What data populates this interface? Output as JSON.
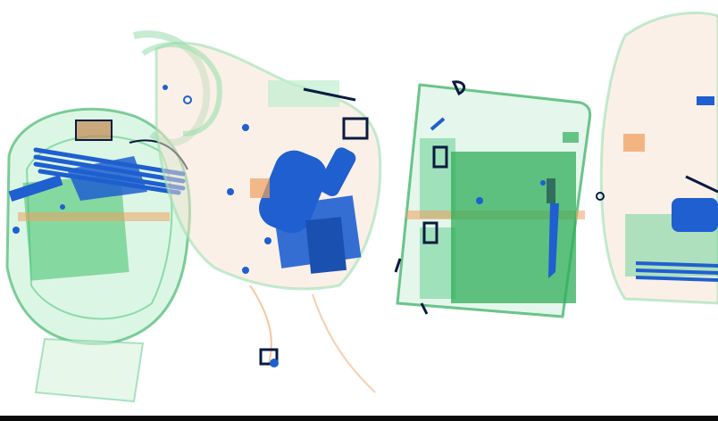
{
  "scene": {
    "kind": "x-ray baggage scan",
    "background": "#ffffff",
    "colors": {
      "organic": "#f0a060",
      "mixed": "#2fae5a",
      "mixed_light": "#9be0b0",
      "metal": "#1f5fd0",
      "dense": "#0a1a40"
    }
  }
}
